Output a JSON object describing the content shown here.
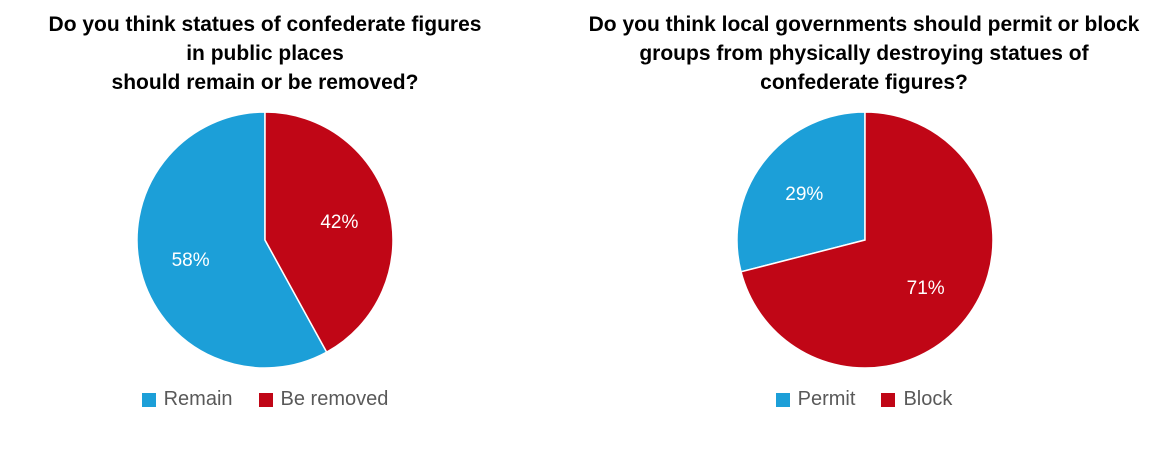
{
  "chart_data": [
    {
      "type": "pie",
      "title_lines": [
        "Do you think statues of confederate figures",
        "in public places",
        "should remain or be removed?"
      ],
      "slices": [
        {
          "name": "Remain",
          "value": 58,
          "label": "58%",
          "color": "#1c9fd8"
        },
        {
          "name": "Be removed",
          "value": 42,
          "label": "42%",
          "color": "#c00616"
        }
      ],
      "start": "12 o'clock, counterclockwise from first slice",
      "legend_position": "bottom"
    },
    {
      "type": "pie",
      "title_lines": [
        "Do you think local governments should permit or block",
        "groups from physically destroying statues of",
        "confederate figures?"
      ],
      "slices": [
        {
          "name": "Permit",
          "value": 29,
          "label": "29%",
          "color": "#1c9fd8"
        },
        {
          "name": "Block",
          "value": 71,
          "label": "71%",
          "color": "#c00616"
        }
      ],
      "start": "12 o'clock, counterclockwise from first slice",
      "legend_position": "bottom"
    }
  ]
}
